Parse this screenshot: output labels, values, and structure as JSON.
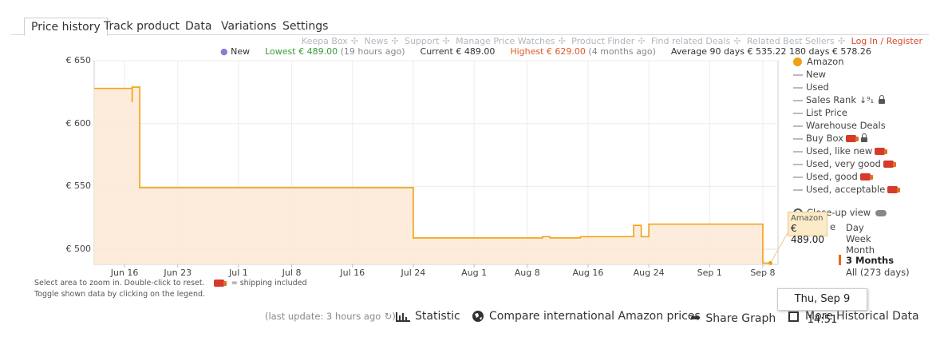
{
  "tabs": [
    "Price history",
    "Track product",
    "Data",
    "Variations",
    "Settings"
  ],
  "links": [
    "Keepa Box",
    "News",
    "Support",
    "Manage Price Watches",
    "Product Finder",
    "Find related Deals",
    "Related Best Sellers",
    "Log In / Register"
  ],
  "stats": {
    "new": "New",
    "lowest_label": "Lowest € 489.00",
    "lowest_ago": "(19 hours ago)",
    "current": "Current € 489.00",
    "highest_label": "Highest € 629.00",
    "highest_ago": "(4 months ago)",
    "avg90": "Average 90 days € 535.22",
    "avg180": "180 days € 578.26"
  },
  "chart_notes": {
    "line1a": "Select area to zoom in. Double-click to reset.",
    "line1b": "= shipping included",
    "line2": "Toggle shown data by clicking on the legend."
  },
  "legend": {
    "items": [
      "Amazon",
      "New",
      "Used",
      "Sales Rank",
      "List Price",
      "Warehouse Deals",
      "Buy Box",
      "Used, like new",
      "Used, very good",
      "Used, good",
      "Used, acceptable"
    ],
    "closeup": "Close-up view",
    "range_items": [
      "Day",
      "Week",
      "Month",
      "3 Months",
      "All (273 days)"
    ],
    "range_partial_label": "e"
  },
  "tooltip": {
    "series": "Amazon",
    "price": "€ 489.00",
    "date": "Thu, Sep 9 14:51"
  },
  "bottom": {
    "last_update": "(last update: 3 hours ago",
    "statistic": "Statistic",
    "compare": "Compare international Amazon prices",
    "share": "Share Graph",
    "more": "More Historical Data"
  },
  "colors": {
    "amazon_line": "#f0a010",
    "amazon_fill": "#fde9d6",
    "link_red": "#d94a2a",
    "lowest_green": "#3b9c3b",
    "highest_red": "#e05a2b",
    "range_active": "#e66a1a"
  },
  "chart_data": {
    "type": "line",
    "x_tick_labels": [
      "Jun 16",
      "Jun 23",
      "Jul 1",
      "Jul 8",
      "Jul 16",
      "Jul 24",
      "Aug 1",
      "Aug 8",
      "Aug 16",
      "Aug 24",
      "Sep 1",
      "Sep 8"
    ],
    "y_tick_labels": [
      "€ 650",
      "€ 600",
      "€ 550",
      "€ 500"
    ],
    "ylim": [
      488,
      650
    ],
    "xlim": [
      "2021-06-12",
      "2021-09-10"
    ],
    "grid": true,
    "series": [
      {
        "name": "Amazon",
        "step": true,
        "x": [
          "2021-06-12",
          "2021-06-17",
          "2021-06-17",
          "2021-06-18",
          "2021-07-24",
          "2021-08-10",
          "2021-08-11",
          "2021-08-12",
          "2021-08-15",
          "2021-08-22",
          "2021-08-23",
          "2021-08-24",
          "2021-08-24",
          "2021-09-08",
          "2021-09-09"
        ],
        "y": [
          628,
          617,
          629,
          549,
          509,
          510,
          509,
          509,
          510,
          519,
          510,
          519,
          520,
          489,
          489
        ]
      }
    ]
  }
}
